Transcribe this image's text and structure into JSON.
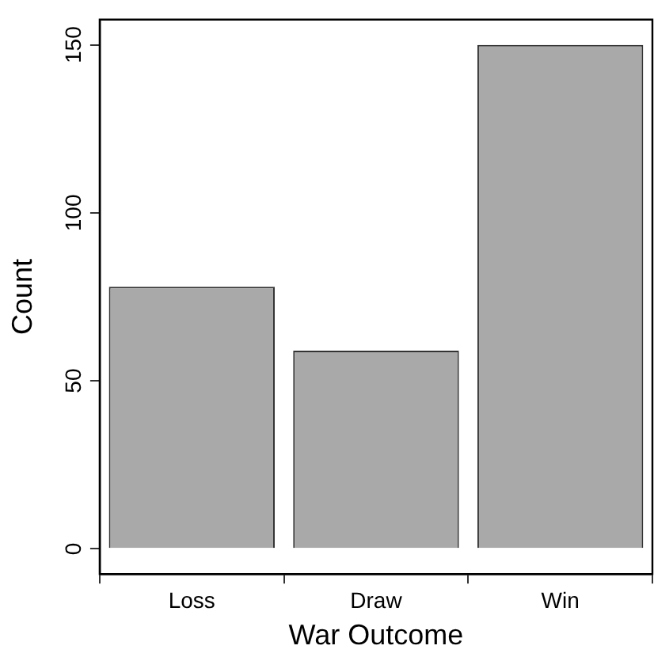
{
  "chart_data": {
    "type": "bar",
    "xlabel": "War Outcome",
    "ylabel": "Count",
    "categories": [
      "Loss",
      "Draw",
      "Win"
    ],
    "values": [
      78,
      59,
      150
    ],
    "color": "#a9a9a9",
    "ylim": [
      -7.5,
      157.5
    ],
    "yticks": [
      0,
      50,
      100,
      150
    ],
    "grid": false,
    "legend": false
  }
}
